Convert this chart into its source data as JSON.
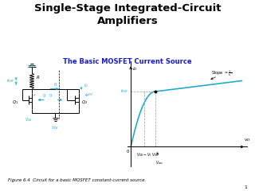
{
  "title": "Single-Stage Integrated-Circuit\nAmplifiers",
  "subtitle": "The Basic MOSFET Current Source",
  "subtitle_color": "#1a1aCC",
  "background_color": "#ffffff",
  "caption": "Figure 6.4  Circuit for a basic MOSFET constant-current source.",
  "page_number": "1",
  "title_fontsize": 9.5,
  "subtitle_fontsize": 6.0,
  "caption_fontsize": 4.0,
  "curve_color": "#22AACC",
  "dashed_color": "#999999",
  "circuit_color": "#22AACC",
  "line_color": "#000000"
}
